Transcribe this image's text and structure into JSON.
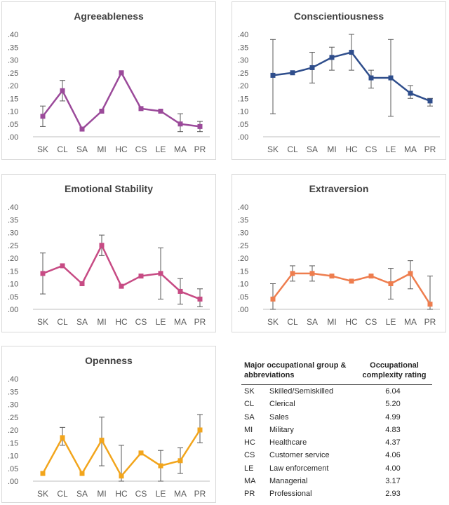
{
  "chart_data": [
    {
      "type": "line",
      "title": "Agreeableness",
      "categories": [
        "SK",
        "CL",
        "SA",
        "MI",
        "HC",
        "CS",
        "LE",
        "MA",
        "PR"
      ],
      "ylim": [
        0,
        0.4
      ],
      "yticks": [
        ".00",
        ".05",
        ".10",
        ".15",
        ".20",
        ".25",
        ".30",
        ".35",
        ".40"
      ],
      "color": "#9b4a9a",
      "values": [
        0.08,
        0.18,
        0.03,
        0.1,
        0.25,
        0.11,
        0.1,
        0.05,
        0.04
      ],
      "err_low": [
        0.04,
        0.14,
        0.03,
        0.1,
        0.25,
        0.11,
        0.1,
        0.02,
        0.02
      ],
      "err_high": [
        0.12,
        0.22,
        0.03,
        0.1,
        0.25,
        0.11,
        0.1,
        0.09,
        0.06
      ]
    },
    {
      "type": "line",
      "title": "Conscientiousness",
      "categories": [
        "SK",
        "CL",
        "SA",
        "MI",
        "HC",
        "CS",
        "LE",
        "MA",
        "PR"
      ],
      "ylim": [
        0,
        0.4
      ],
      "yticks": [
        ".00",
        ".05",
        ".10",
        ".15",
        ".20",
        ".25",
        ".30",
        ".35",
        ".40"
      ],
      "color": "#2f4e8c",
      "values": [
        0.24,
        0.25,
        0.27,
        0.31,
        0.33,
        0.23,
        0.23,
        0.17,
        0.14
      ],
      "err_low": [
        0.09,
        0.25,
        0.21,
        0.26,
        0.26,
        0.19,
        0.08,
        0.15,
        0.12
      ],
      "err_high": [
        0.38,
        0.25,
        0.33,
        0.35,
        0.4,
        0.26,
        0.38,
        0.2,
        0.15
      ]
    },
    {
      "type": "line",
      "title": "Emotional Stability",
      "categories": [
        "SK",
        "CL",
        "SA",
        "MI",
        "HC",
        "CS",
        "LE",
        "MA",
        "PR"
      ],
      "ylim": [
        0,
        0.4
      ],
      "yticks": [
        ".00",
        ".05",
        ".10",
        ".15",
        ".20",
        ".25",
        ".30",
        ".35",
        ".40"
      ],
      "color": "#c74b84",
      "values": [
        0.14,
        0.17,
        0.1,
        0.25,
        0.09,
        0.13,
        0.14,
        0.07,
        0.04
      ],
      "err_low": [
        0.06,
        0.17,
        0.1,
        0.21,
        0.09,
        0.13,
        0.04,
        0.02,
        0.01
      ],
      "err_high": [
        0.22,
        0.17,
        0.1,
        0.29,
        0.09,
        0.13,
        0.24,
        0.12,
        0.08
      ]
    },
    {
      "type": "line",
      "title": "Extraversion",
      "categories": [
        "SK",
        "CL",
        "SA",
        "MI",
        "HC",
        "CS",
        "LE",
        "MA",
        "PR"
      ],
      "ylim": [
        0,
        0.4
      ],
      "yticks": [
        ".00",
        ".05",
        ".10",
        ".15",
        ".20",
        ".25",
        ".30",
        ".35",
        ".40"
      ],
      "color": "#ee7d4e",
      "values": [
        0.04,
        0.14,
        0.14,
        0.13,
        0.11,
        0.13,
        0.1,
        0.14,
        0.02
      ],
      "err_low": [
        0.0,
        0.11,
        0.11,
        0.13,
        0.11,
        0.13,
        0.04,
        0.08,
        0.0
      ],
      "err_high": [
        0.1,
        0.17,
        0.17,
        0.13,
        0.11,
        0.13,
        0.16,
        0.19,
        0.13
      ]
    },
    {
      "type": "line",
      "title": "Openness",
      "categories": [
        "SK",
        "CL",
        "SA",
        "MI",
        "HC",
        "CS",
        "LE",
        "MA",
        "PR"
      ],
      "ylim": [
        0,
        0.4
      ],
      "yticks": [
        ".00",
        ".05",
        ".10",
        ".15",
        ".20",
        ".25",
        ".30",
        ".35",
        ".40"
      ],
      "color": "#f2a51c",
      "values": [
        0.03,
        0.17,
        0.03,
        0.16,
        0.02,
        0.11,
        0.06,
        0.08,
        0.2
      ],
      "err_low": [
        0.03,
        0.14,
        0.03,
        0.06,
        0.0,
        0.11,
        0.0,
        0.03,
        0.15
      ],
      "err_high": [
        0.03,
        0.21,
        0.03,
        0.25,
        0.14,
        0.11,
        0.12,
        0.13,
        0.26
      ]
    }
  ],
  "legend_table": {
    "header_left": "Major occupational group & abbreviations",
    "header_right": "Occupational complexity rating",
    "rows": [
      {
        "abbr": "SK",
        "name": "Skilled/Semiskilled",
        "rating": "6.04"
      },
      {
        "abbr": "CL",
        "name": "Clerical",
        "rating": "5.20"
      },
      {
        "abbr": "SA",
        "name": "Sales",
        "rating": "4.99"
      },
      {
        "abbr": "MI",
        "name": "Military",
        "rating": "4.83"
      },
      {
        "abbr": "HC",
        "name": "Healthcare",
        "rating": "4.37"
      },
      {
        "abbr": "CS",
        "name": "Customer service",
        "rating": "4.06"
      },
      {
        "abbr": "LE",
        "name": "Law enforcement",
        "rating": "4.00"
      },
      {
        "abbr": "MA",
        "name": "Managerial",
        "rating": "3.17"
      },
      {
        "abbr": "PR",
        "name": "Professional",
        "rating": "2.93"
      }
    ]
  }
}
